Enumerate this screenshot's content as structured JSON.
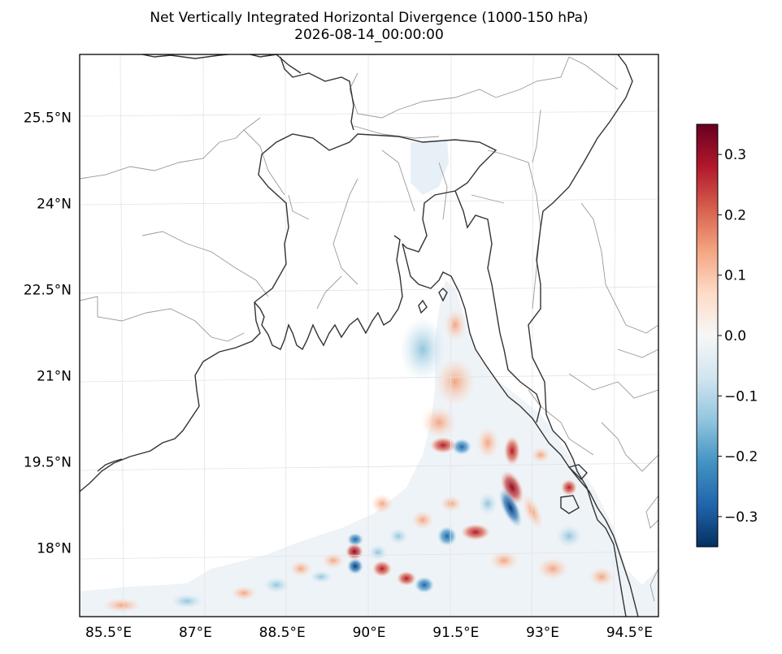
{
  "title": {
    "line1": "Net Vertically Integrated Horizontal Divergence (1000-150 hPa)",
    "line2": "2026-08-14_00:00:00"
  },
  "map": {
    "lon_range": [
      85.0,
      95.0
    ],
    "lat_range": [
      16.8,
      26.6
    ],
    "gridlines": true,
    "lon_ticks": [
      {
        "value": 85.5,
        "label": "85.5°E"
      },
      {
        "value": 87.0,
        "label": "87°E"
      },
      {
        "value": 88.5,
        "label": "88.5°E"
      },
      {
        "value": 90.0,
        "label": "90°E"
      },
      {
        "value": 91.5,
        "label": "91.5°E"
      },
      {
        "value": 93.0,
        "label": "93°E"
      },
      {
        "value": 94.5,
        "label": "94.5°E"
      }
    ],
    "lat_ticks": [
      {
        "value": 25.5,
        "label": "25.5°N"
      },
      {
        "value": 24.0,
        "label": "24°N"
      },
      {
        "value": 22.5,
        "label": "22.5°N"
      },
      {
        "value": 21.0,
        "label": "21°N"
      },
      {
        "value": 19.5,
        "label": "19.5°N"
      },
      {
        "value": 18.0,
        "label": "18°N"
      }
    ],
    "coastline_color": "#333333",
    "admin_border_color": "#999999"
  },
  "colorbar": {
    "colormap": "RdBu_r",
    "range": [
      -0.35,
      0.35
    ],
    "ticks": [
      {
        "value": 0.3,
        "label": "0.3"
      },
      {
        "value": 0.2,
        "label": "0.2"
      },
      {
        "value": 0.1,
        "label": "0.1"
      },
      {
        "value": 0.0,
        "label": "0.0"
      },
      {
        "value": -0.1,
        "label": "−0.1"
      },
      {
        "value": -0.2,
        "label": "−0.2"
      },
      {
        "value": -0.3,
        "label": "−0.3"
      }
    ]
  },
  "field_features": [
    {
      "name": "positive-max",
      "lon": 92.6,
      "lat": 19.3,
      "value": 0.32
    },
    {
      "name": "negative-min",
      "lon": 92.7,
      "lat": 18.9,
      "value": -0.3
    },
    {
      "name": "positive-max",
      "lon": 89.7,
      "lat": 18.1,
      "value": 0.34
    },
    {
      "name": "negative-min",
      "lon": 89.8,
      "lat": 17.85,
      "value": -0.33
    },
    {
      "name": "negative-min",
      "lon": 89.75,
      "lat": 18.35,
      "value": -0.22
    },
    {
      "name": "negative-min",
      "lon": 91.5,
      "lat": 20.1,
      "value": -0.25
    },
    {
      "name": "negative-min",
      "lon": 91.25,
      "lat": 18.3,
      "value": -0.26
    },
    {
      "name": "positive-max",
      "lon": 91.8,
      "lat": 18.3,
      "value": 0.2
    },
    {
      "name": "positive-max",
      "lon": 91.0,
      "lat": 17.6,
      "value": 0.18
    },
    {
      "name": "negative-min",
      "lon": 90.9,
      "lat": 17.3,
      "value": -0.2
    },
    {
      "name": "positive-max",
      "lon": 91.1,
      "lat": 20.2,
      "value": 0.14
    },
    {
      "name": "positive-max",
      "lon": 92.3,
      "lat": 19.9,
      "value": 0.12
    }
  ]
}
